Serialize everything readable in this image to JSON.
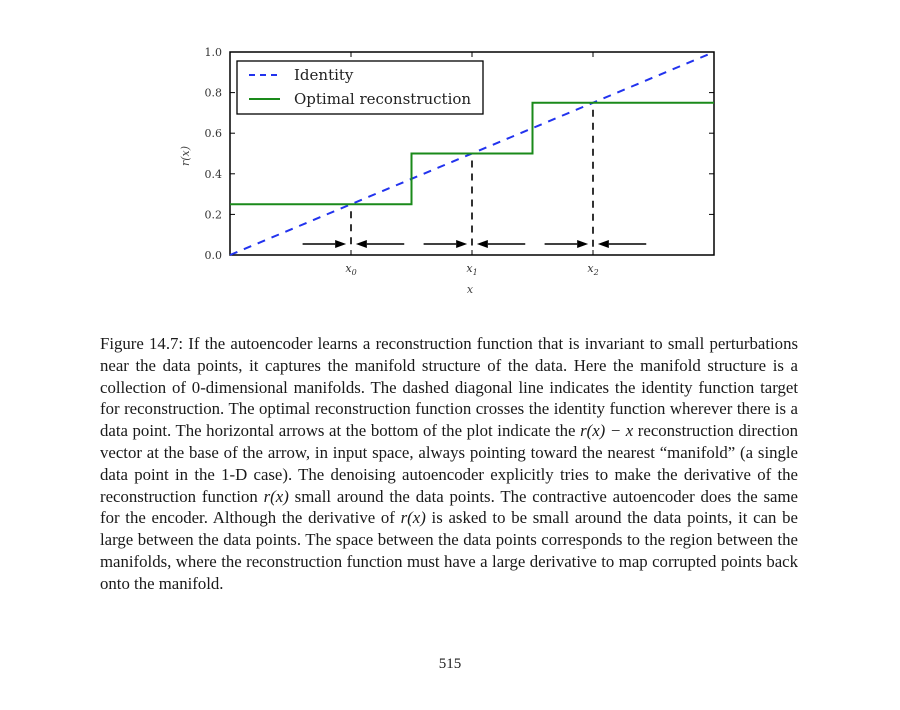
{
  "chart_data": {
    "type": "line",
    "xlabel": "x",
    "ylabel": "r(x)",
    "xlim": [
      0,
      1
    ],
    "ylim": [
      0,
      1
    ],
    "y_ticks": [
      "0.0",
      "0.2",
      "0.4",
      "0.6",
      "0.8",
      "1.0"
    ],
    "y_tick_values": [
      0.0,
      0.2,
      0.4,
      0.6,
      0.8,
      1.0
    ],
    "x_ticks": [
      "x0",
      "x1",
      "x2"
    ],
    "x_tick_values": [
      0.25,
      0.5,
      0.75
    ],
    "legend_position": "top-left",
    "series": [
      {
        "name": "Identity",
        "style": "dashed",
        "color": "#2233ee",
        "x": [
          0,
          1
        ],
        "y": [
          0,
          1
        ]
      },
      {
        "name": "Optimal reconstruction",
        "style": "solid",
        "color": "#1a8a1a",
        "x": [
          0,
          0.375,
          0.375,
          0.625,
          0.625,
          1.0
        ],
        "y": [
          0.25,
          0.25,
          0.5,
          0.5,
          0.75,
          0.75
        ]
      }
    ],
    "data_points": [
      0.25,
      0.5,
      0.75
    ],
    "arrows": [
      {
        "from": 0.15,
        "to": 0.24
      },
      {
        "from": 0.36,
        "to": 0.26
      },
      {
        "from": 0.4,
        "to": 0.49
      },
      {
        "from": 0.61,
        "to": 0.51
      },
      {
        "from": 0.65,
        "to": 0.74
      },
      {
        "from": 0.86,
        "to": 0.76
      }
    ]
  },
  "caption": {
    "label": "Figure 14.7:",
    "seg1": " If the autoencoder learns a reconstruction function that is invariant to small perturbations near the data points, it captures the manifold structure of the data. Here the manifold structure is a collection of 0-dimensional manifolds. The dashed diagonal line indicates the identity function target for reconstruction. The optimal reconstruction function crosses the identity function wherever there is a data point. The horizontal arrows at the bottom of the plot indicate the ",
    "math1": "r(x) − x",
    "seg2": " reconstruction direction vector at the base of the arrow, in input space, always pointing toward the nearest “manifold” (a single data point in the 1-D case). The denoising autoencoder explicitly tries to make the derivative of the reconstruction function ",
    "math2": "r(x)",
    "seg3": " small around the data points. The contractive autoencoder does the same for the encoder. Although the derivative of ",
    "math3": "r(x)",
    "seg4": " is asked to be small around the data points, it can be large between the data points. The space between the data points corresponds to the region between the manifolds, where the reconstruction function must have a large derivative to map corrupted points back onto the manifold."
  },
  "page_number": "515"
}
